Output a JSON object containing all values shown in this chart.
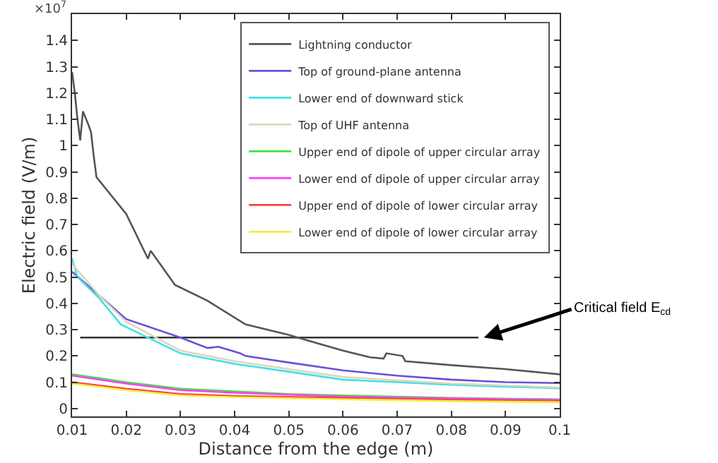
{
  "chart_data": {
    "type": "line",
    "xlabel": "Distance from the edge (m)",
    "ylabel": "Electric field (V/m)",
    "xlim": [
      0.01,
      0.1
    ],
    "ylim": [
      -0.03,
      1.5
    ],
    "xticks": [
      0.01,
      0.02,
      0.03,
      0.04,
      0.05,
      0.06,
      0.07,
      0.08,
      0.09,
      0.1
    ],
    "yticks": [
      0,
      0.1,
      0.2,
      0.3,
      0.4,
      0.5,
      0.6,
      0.7,
      0.8,
      0.9,
      1,
      1.1,
      1.2,
      1.3,
      1.4
    ],
    "grid": false,
    "legend": "top right",
    "marker": "none",
    "line_style": "solid",
    "annotations": [
      "×10$^{7}$",
      {
        "text": "Critical field E$_{cd}$",
        "x": 0.086,
        "y": 0.27
      }
    ],
    "series": [
      {
        "name": "Lightning conductor",
        "color": "#555555",
        "x": [
          0.01,
          0.0105,
          0.011,
          0.0115,
          0.012,
          0.013,
          0.0135,
          0.014,
          0.0145,
          0.02,
          0.024,
          0.0245,
          0.029,
          0.035,
          0.042,
          0.05,
          0.055,
          0.06,
          0.065,
          0.0675,
          0.068,
          0.071,
          0.0715,
          0.08,
          0.09,
          0.1
        ],
        "values": [
          1.28,
          1.2,
          1.1,
          1.02,
          1.13,
          1.08,
          1.05,
          0.96,
          0.88,
          0.74,
          0.57,
          0.6,
          0.47,
          0.41,
          0.32,
          0.28,
          0.25,
          0.22,
          0.195,
          0.19,
          0.21,
          0.2,
          0.18,
          0.165,
          0.15,
          0.13
        ]
      },
      {
        "name": "Top of ground-plane antenna",
        "color": "#6a4fd8",
        "x": [
          0.01,
          0.015,
          0.02,
          0.03,
          0.035,
          0.037,
          0.041,
          0.042,
          0.05,
          0.06,
          0.07,
          0.08,
          0.09,
          0.1
        ],
        "values": [
          0.52,
          0.43,
          0.34,
          0.27,
          0.23,
          0.235,
          0.21,
          0.2,
          0.175,
          0.145,
          0.125,
          0.11,
          0.1,
          0.097
        ]
      },
      {
        "name": "Lower end of downward stick",
        "color": "#40e0e8",
        "x": [
          0.01,
          0.011,
          0.015,
          0.019,
          0.02,
          0.03,
          0.035,
          0.04,
          0.05,
          0.06,
          0.07,
          0.08,
          0.09,
          0.1
        ],
        "values": [
          0.57,
          0.5,
          0.42,
          0.32,
          0.31,
          0.21,
          0.19,
          0.17,
          0.14,
          0.11,
          0.1,
          0.09,
          0.083,
          0.077
        ]
      },
      {
        "name": "Top of UHF antenna",
        "color": "#e0d4bc",
        "x": [
          0.01,
          0.015,
          0.02,
          0.03,
          0.04,
          0.05,
          0.06,
          0.08,
          0.1
        ],
        "values": [
          0.55,
          0.43,
          0.33,
          0.22,
          0.18,
          0.15,
          0.12,
          0.095,
          0.08
        ]
      },
      {
        "name": "Upper end of dipole of upper circular array",
        "color": "#40e040",
        "x": [
          0.01,
          0.02,
          0.03,
          0.04,
          0.05,
          0.06,
          0.08,
          0.1
        ],
        "values": [
          0.13,
          0.1,
          0.075,
          0.065,
          0.055,
          0.05,
          0.04,
          0.035
        ]
      },
      {
        "name": "Lower end of dipole of upper circular array",
        "color": "#ff40ff",
        "x": [
          0.01,
          0.02,
          0.03,
          0.04,
          0.06,
          0.08,
          0.1
        ],
        "values": [
          0.125,
          0.095,
          0.07,
          0.06,
          0.045,
          0.038,
          0.033
        ]
      },
      {
        "name": "Upper end of dipole of lower circular array",
        "color": "#ff4040",
        "x": [
          0.01,
          0.02,
          0.03,
          0.04,
          0.06,
          0.08,
          0.1
        ],
        "values": [
          0.1,
          0.075,
          0.055,
          0.048,
          0.04,
          0.033,
          0.028
        ]
      },
      {
        "name": "Lower end of dipole of lower circular array",
        "color": "#f0f040",
        "x": [
          0.01,
          0.02,
          0.03,
          0.04,
          0.06,
          0.08,
          0.1
        ],
        "values": [
          0.095,
          0.07,
          0.05,
          0.043,
          0.035,
          0.028,
          0.024
        ]
      },
      {
        "type": "line",
        "color": "#333333",
        "x": [
          0.0115,
          0.085
        ],
        "values": [
          0.27,
          0.27
        ]
      }
    ]
  }
}
